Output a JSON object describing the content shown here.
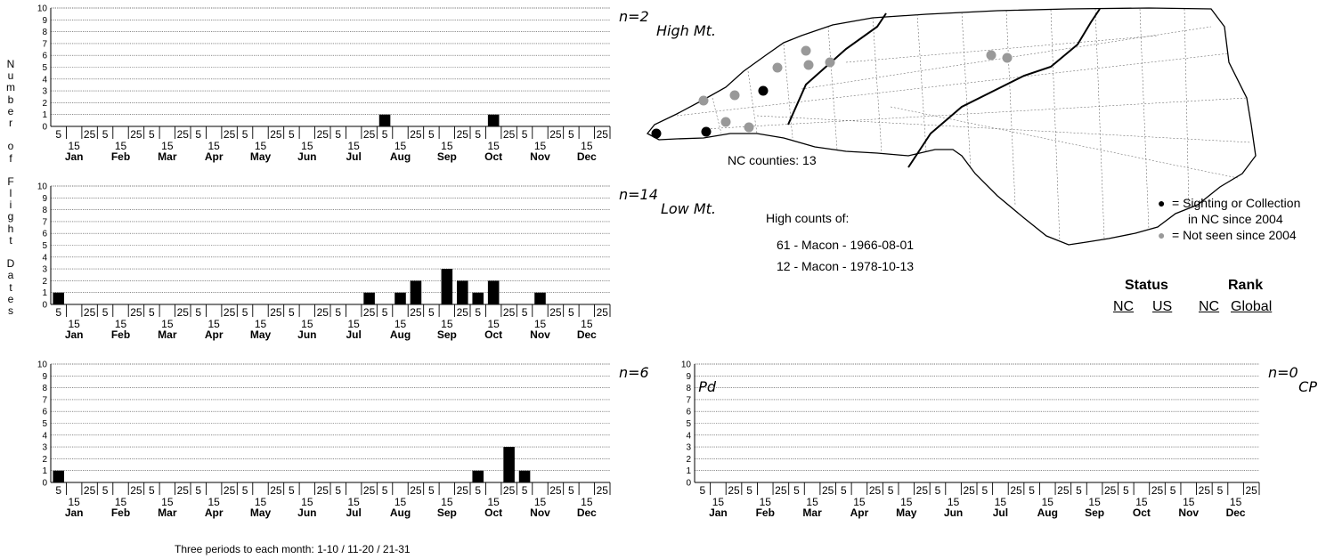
{
  "y_axis_label": "Number of Flight Dates",
  "footnote": "Three periods to each month: 1-10 / 11-20 / 21-31",
  "map": {
    "counties_label": "NC counties: 13",
    "legend": {
      "black": "= Sighting or Collection",
      "black_line2": "in NC since 2004",
      "gray": "= Not seen since 2004"
    },
    "colors": {
      "recent": "#000000",
      "old": "#999999"
    }
  },
  "high_counts": {
    "title": "High counts of:",
    "items": [
      "61 - Macon - 1966-08-01",
      "12 - Macon - 1978-10-13"
    ]
  },
  "status_rank": {
    "status_label": "Status",
    "rank_label": "Rank",
    "cols": [
      "NC",
      "US",
      "NC",
      "Global"
    ]
  },
  "chart_data": [
    {
      "type": "bar",
      "region": "High Mt.",
      "n_label": "n=2",
      "ylim": [
        0,
        10
      ],
      "yticks": [
        "0",
        "1",
        "2",
        "3",
        "4",
        "5",
        "6",
        "7",
        "8",
        "9",
        "10"
      ],
      "months": [
        "Jan",
        "Feb",
        "Mar",
        "Apr",
        "May",
        "Jun",
        "Jul",
        "Aug",
        "Sep",
        "Oct",
        "Nov",
        "Dec"
      ],
      "period_ticks": [
        "5",
        "15",
        "25"
      ],
      "values": [
        0,
        0,
        0,
        0,
        0,
        0,
        0,
        0,
        0,
        0,
        0,
        0,
        0,
        0,
        0,
        0,
        0,
        0,
        0,
        0,
        0,
        1,
        0,
        0,
        0,
        0,
        0,
        0,
        1,
        0,
        0,
        0,
        0,
        0,
        0,
        0
      ]
    },
    {
      "type": "bar",
      "region": "Low Mt.",
      "n_label": "n=14",
      "ylim": [
        0,
        10
      ],
      "yticks": [
        "0",
        "1",
        "2",
        "3",
        "4",
        "5",
        "6",
        "7",
        "8",
        "9",
        "10"
      ],
      "months": [
        "Jan",
        "Feb",
        "Mar",
        "Apr",
        "May",
        "Jun",
        "Jul",
        "Aug",
        "Sep",
        "Oct",
        "Nov",
        "Dec"
      ],
      "period_ticks": [
        "5",
        "15",
        "25"
      ],
      "values": [
        1,
        0,
        0,
        0,
        0,
        0,
        0,
        0,
        0,
        0,
        0,
        0,
        0,
        0,
        0,
        0,
        0,
        0,
        0,
        0,
        1,
        0,
        1,
        2,
        0,
        3,
        2,
        1,
        2,
        0,
        0,
        1,
        0,
        0,
        0,
        0
      ]
    },
    {
      "type": "bar",
      "region": "Pd",
      "n_label": "n=6",
      "ylim": [
        0,
        10
      ],
      "yticks": [
        "0",
        "1",
        "2",
        "3",
        "4",
        "5",
        "6",
        "7",
        "8",
        "9",
        "10"
      ],
      "months": [
        "Jan",
        "Feb",
        "Mar",
        "Apr",
        "May",
        "Jun",
        "Jul",
        "Aug",
        "Sep",
        "Oct",
        "Nov",
        "Dec"
      ],
      "period_ticks": [
        "5",
        "15",
        "25"
      ],
      "values": [
        1,
        0,
        0,
        0,
        0,
        0,
        0,
        0,
        0,
        0,
        0,
        0,
        0,
        0,
        0,
        0,
        0,
        0,
        0,
        0,
        0,
        0,
        0,
        0,
        0,
        0,
        0,
        1,
        0,
        3,
        1,
        0,
        0,
        0,
        0,
        0
      ]
    },
    {
      "type": "bar",
      "region": "CP",
      "n_label": "n=0",
      "ylim": [
        0,
        10
      ],
      "yticks": [
        "0",
        "1",
        "2",
        "3",
        "4",
        "5",
        "6",
        "7",
        "8",
        "9",
        "10"
      ],
      "months": [
        "Jan",
        "Feb",
        "Mar",
        "Apr",
        "May",
        "Jun",
        "Jul",
        "Aug",
        "Sep",
        "Oct",
        "Nov",
        "Dec"
      ],
      "period_ticks": [
        "5",
        "15",
        "25"
      ],
      "values": [
        0,
        0,
        0,
        0,
        0,
        0,
        0,
        0,
        0,
        0,
        0,
        0,
        0,
        0,
        0,
        0,
        0,
        0,
        0,
        0,
        0,
        0,
        0,
        0,
        0,
        0,
        0,
        0,
        0,
        0,
        0,
        0,
        0,
        0,
        0,
        0
      ]
    }
  ]
}
